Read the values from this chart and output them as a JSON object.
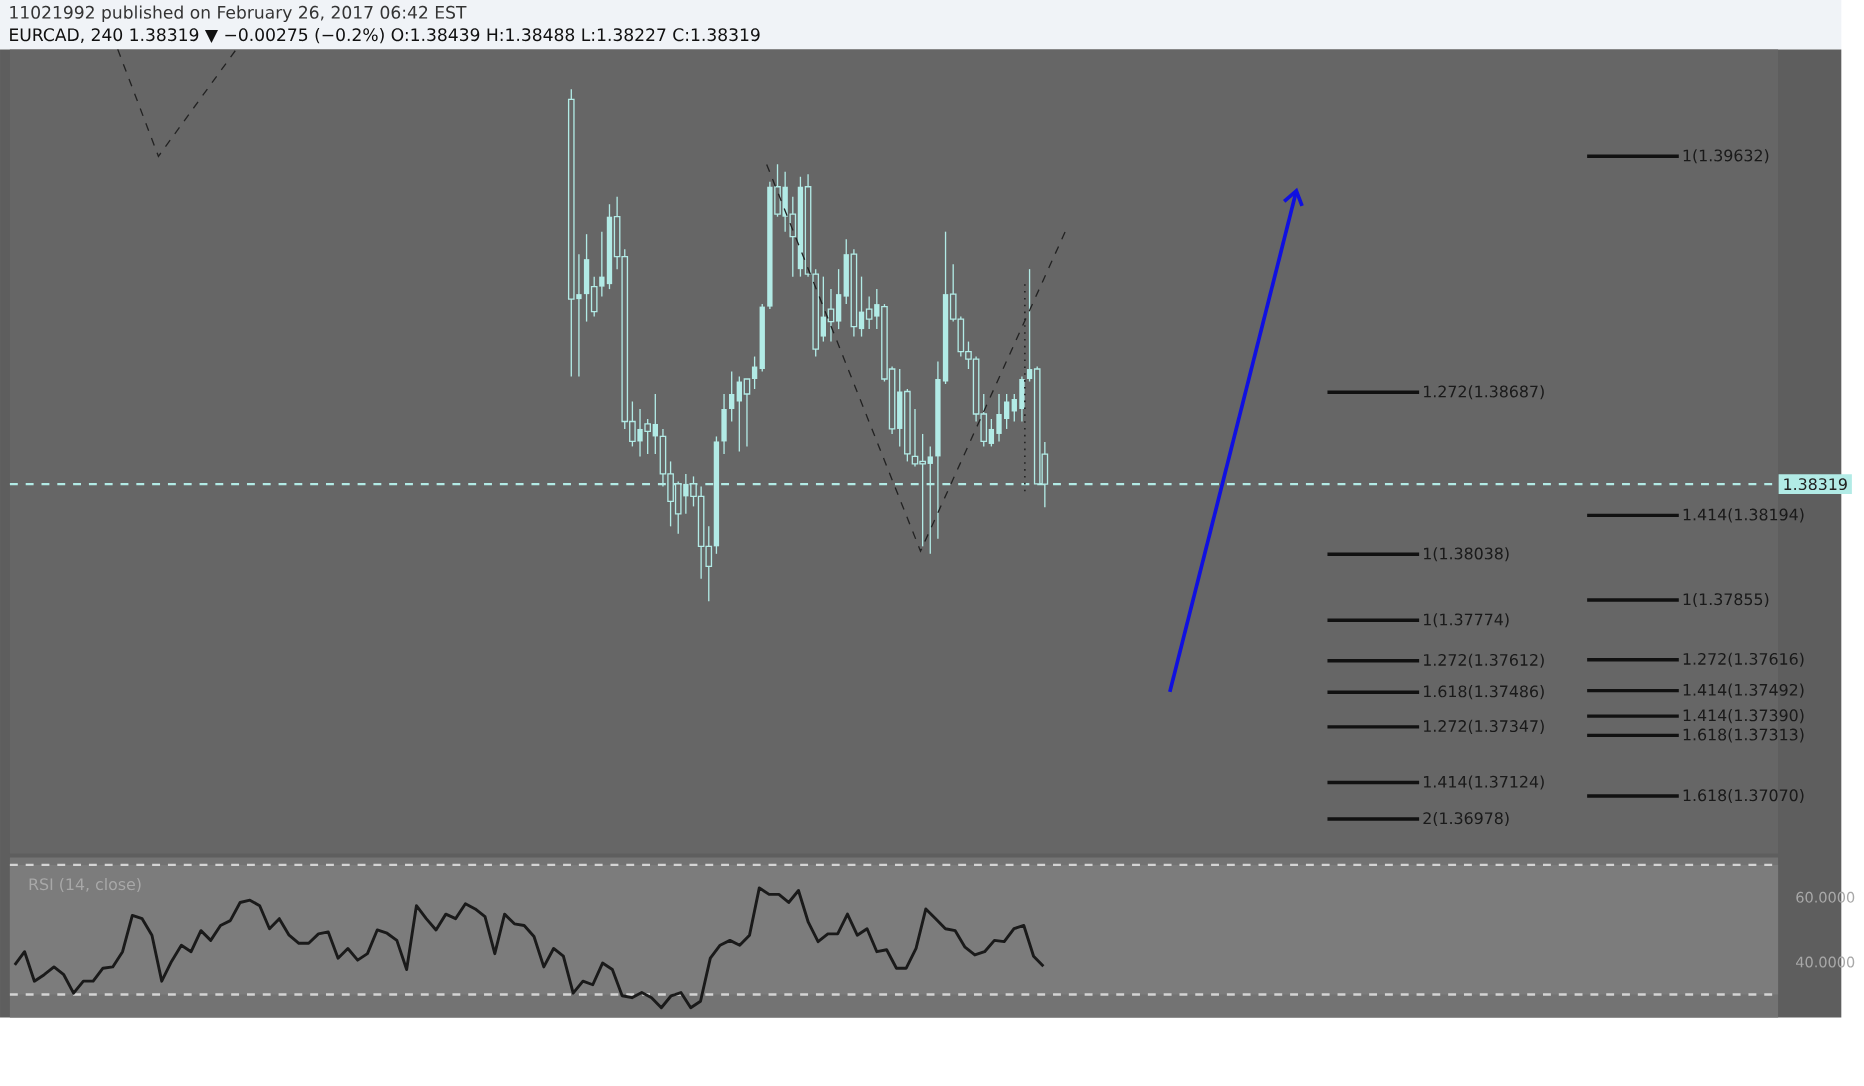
{
  "chart_data": [
    {
      "type": "candlestick",
      "subtitle": "11021992 published on February 26, 2017 06:42 EST",
      "title": "EURCAD, 240 1.38319 ▼ −0.00275 (−0.2%) O:1.38439 H:1.38488 L:1.38227 C:1.38319",
      "color": "#b2ebe6",
      "tick_labels": false,
      "ylim": [
        1.3684,
        1.4006
      ],
      "categories": [
        null,
        null,
        null,
        null,
        null,
        null,
        null,
        null,
        null,
        null,
        null,
        null,
        null,
        null,
        null,
        null,
        null,
        null,
        null,
        null,
        null,
        null,
        null,
        null,
        null,
        null,
        null,
        null,
        null,
        null,
        null,
        null,
        null,
        null,
        null,
        null,
        null,
        null,
        null,
        null,
        null,
        null,
        null,
        null,
        null,
        null,
        null,
        null,
        null,
        null,
        null,
        null,
        null,
        null,
        null,
        null,
        null,
        null,
        null,
        null,
        null,
        null,
        null,
        null,
        null,
        null,
        null,
        null,
        null,
        null,
        null,
        null,
        null,
        null,
        null,
        null,
        null,
        null,
        null,
        null,
        null,
        null,
        null,
        null,
        null,
        null,
        null,
        null,
        null,
        null,
        null,
        null,
        null,
        null,
        null,
        null,
        null,
        null,
        null,
        null,
        null,
        null,
        null,
        null,
        null,
        null,
        null,
        null,
        null,
        null,
        null,
        null,
        null,
        null,
        null,
        null,
        null,
        null,
        null,
        null,
        null,
        null,
        null,
        null,
        null,
        null,
        null,
        null,
        null,
        null,
        null,
        null,
        null,
        null,
        null,
        null
      ],
      "ohlc": [
        null,
        null,
        null,
        null,
        null,
        null,
        null,
        null,
        null,
        null,
        null,
        null,
        null,
        null,
        null,
        null,
        null,
        null,
        null,
        null,
        null,
        null,
        null,
        null,
        null,
        null,
        null,
        null,
        null,
        null,
        null,
        null,
        null,
        null,
        null,
        null,
        null,
        null,
        null,
        null,
        null,
        null,
        null,
        null,
        null,
        null,
        null,
        null,
        null,
        null,
        null,
        null,
        null,
        null,
        null,
        null,
        null,
        null,
        null,
        null,
        null,
        null,
        null,
        null,
        null,
        null,
        null,
        null,
        null,
        null,
        null,
        null,
        null,
        [
          1.3986,
          1.399,
          1.3875,
          1.3906
        ],
        [
          1.3906,
          1.3924,
          1.3875,
          1.3908
        ],
        [
          1.3908,
          1.3932,
          1.3897,
          1.3922
        ],
        [
          1.3911,
          1.3915,
          1.3899,
          1.3901
        ],
        [
          1.3911,
          1.3933,
          1.3907,
          1.3915
        ],
        [
          1.3912,
          1.3944,
          1.391,
          1.3939
        ],
        [
          1.3939,
          1.3947,
          1.3918,
          1.3923
        ],
        [
          1.3923,
          1.3926,
          1.3854,
          1.3857
        ],
        [
          1.3857,
          1.3865,
          1.3847,
          1.3849
        ],
        [
          1.3849,
          1.3862,
          1.3843,
          1.3854
        ],
        [
          1.3856,
          1.3858,
          1.3844,
          1.3853
        ],
        [
          1.3851,
          1.3868,
          1.3844,
          1.3856
        ],
        [
          1.3851,
          1.3854,
          1.3831,
          1.3836
        ],
        [
          1.3836,
          1.3841,
          1.3815,
          1.3825
        ],
        [
          1.3832,
          1.3833,
          1.3812,
          1.382
        ],
        [
          1.3827,
          1.3836,
          1.382,
          1.3832
        ],
        [
          1.3832,
          1.3835,
          1.3823,
          1.3827
        ],
        [
          1.3827,
          1.3831,
          1.3794,
          1.3807
        ],
        [
          1.3807,
          1.3815,
          1.3785,
          1.3799
        ],
        [
          1.3807,
          1.3851,
          1.3804,
          1.3849
        ],
        [
          1.3849,
          1.3868,
          1.3844,
          1.3862
        ],
        [
          1.3862,
          1.3877,
          1.3857,
          1.3868
        ],
        [
          1.3865,
          1.3875,
          1.3845,
          1.3873
        ],
        [
          1.3874,
          1.3874,
          1.3847,
          1.3868
        ],
        [
          1.3874,
          1.3883,
          1.387,
          1.3879
        ],
        [
          1.3878,
          1.3904,
          1.3877,
          1.3903
        ],
        [
          1.3903,
          1.3953,
          1.3902,
          1.3951
        ],
        [
          1.3951,
          1.396,
          1.3939,
          1.394
        ],
        [
          1.3939,
          1.3957,
          1.3933,
          1.3951
        ],
        [
          1.394,
          1.3947,
          1.3915,
          1.3931
        ],
        [
          1.3918,
          1.3955,
          1.3915,
          1.3951
        ],
        [
          1.3951,
          1.3956,
          1.3915,
          1.3916
        ],
        [
          1.3916,
          1.3918,
          1.3883,
          1.3886
        ],
        [
          1.3891,
          1.3915,
          1.3889,
          1.3899
        ],
        [
          1.3902,
          1.391,
          1.3889,
          1.3897
        ],
        [
          1.3897,
          1.3918,
          1.3894,
          1.3908
        ],
        [
          1.3907,
          1.393,
          1.3904,
          1.3924
        ],
        [
          1.3924,
          1.3926,
          1.3891,
          1.3895
        ],
        [
          1.3894,
          1.3915,
          1.3891,
          1.3901
        ],
        [
          1.3902,
          1.3907,
          1.3894,
          1.3898
        ],
        [
          1.3899,
          1.391,
          1.3894,
          1.3904
        ],
        [
          1.3903,
          1.3904,
          1.3873,
          1.3874
        ],
        [
          1.3878,
          1.3879,
          1.3852,
          1.3854
        ],
        [
          1.3854,
          1.3878,
          1.3847,
          1.3869
        ],
        [
          1.3869,
          1.387,
          1.3841,
          1.3844
        ],
        [
          1.3843,
          1.3862,
          1.3839,
          1.384
        ],
        [
          1.3841,
          1.3852,
          1.3807,
          1.384
        ],
        [
          1.384,
          1.3847,
          1.3804,
          1.3843
        ],
        [
          1.3843,
          1.3881,
          1.381,
          1.3874
        ],
        [
          1.3873,
          1.3933,
          1.3872,
          1.3908
        ],
        [
          1.3908,
          1.392,
          1.3897,
          1.3898
        ],
        [
          1.3898,
          1.3899,
          1.3883,
          1.3885
        ],
        [
          1.3885,
          1.3889,
          1.3878,
          1.3882
        ],
        [
          1.3882,
          1.3883,
          1.3857,
          1.386
        ],
        [
          1.386,
          1.3868,
          1.3847,
          1.3849
        ],
        [
          1.3848,
          1.3858,
          1.3847,
          1.3854
        ],
        [
          1.3852,
          1.3868,
          1.3849,
          1.386
        ],
        [
          1.3858,
          1.3868,
          1.3854,
          1.3865
        ],
        [
          1.3861,
          1.3868,
          1.3857,
          1.3866
        ],
        [
          1.3862,
          1.3875,
          1.3857,
          1.3874
        ],
        [
          1.3874,
          1.3918,
          1.3873,
          1.3878
        ],
        [
          1.3878,
          1.3879,
          1.3832,
          1.3832
        ],
        [
          1.38439,
          1.38488,
          1.38227,
          1.38319
        ]
      ],
      "ref_lines": [
        {
          "axis": "y",
          "value": 1.38319,
          "label": "1.38319",
          "color": "#b2ebe6",
          "line_style": "dashed"
        },
        {
          "axis": "y",
          "value": 1.39632,
          "label": "1(1.39632)"
        },
        {
          "axis": "y",
          "value": 1.38687,
          "label": "1.272(1.38687)"
        },
        {
          "axis": "y",
          "value": 1.38194,
          "label": "1.414(1.38194)"
        },
        {
          "axis": "y",
          "value": 1.37486,
          "label": "1.618(1.37486)"
        },
        {
          "axis": "y",
          "value": 1.38038,
          "label": "1(1.38038)"
        },
        {
          "axis": "y",
          "value": 1.37612,
          "label": "1.272(1.37612)"
        },
        {
          "axis": "y",
          "value": 1.3739,
          "label": "1.414(1.37390)"
        },
        {
          "axis": "y",
          "value": 1.3707,
          "label": "1.618(1.37070)"
        },
        {
          "axis": "y",
          "value": 1.37855,
          "label": "1(1.37855)"
        },
        {
          "axis": "y",
          "value": 1.37774,
          "label": "1(1.37774)"
        },
        {
          "axis": "y",
          "value": 1.37616,
          "label": "1.272(1.37616)"
        },
        {
          "axis": "y",
          "value": 1.37492,
          "label": "1.414(1.37492)"
        },
        {
          "axis": "y",
          "value": 1.37347,
          "label": "1.272(1.37347)"
        },
        {
          "axis": "y",
          "value": 1.37313,
          "label": "1.618(1.37313)"
        },
        {
          "axis": "y",
          "value": 1.37124,
          "label": "1.414(1.37124)"
        },
        {
          "axis": "y",
          "value": 1.36978,
          "label": "2(1.36978)"
        }
      ]
    },
    {
      "type": "line",
      "title": "RSI (14, close)",
      "color": "#1a1a1a",
      "tick_labels": "y",
      "ylim": [
        22.9,
        72.3
      ],
      "yticks": [
        {
          "value": 40,
          "label": "40.0000"
        },
        {
          "value": 60,
          "label": "60.0000"
        }
      ],
      "bands": [
        {
          "axis": "y",
          "from": 30,
          "to": 70,
          "color": "#7c7c7c"
        }
      ],
      "ref_lines": [
        {
          "axis": "y",
          "value": 70,
          "color": "#d4d4d4",
          "line_style": "dashed"
        },
        {
          "axis": "y",
          "value": 30,
          "color": "#d4d4d4",
          "line_style": "dashed"
        }
      ],
      "categories": [
        null,
        null,
        null,
        null,
        null,
        null,
        null,
        null,
        null,
        null,
        null,
        null,
        null,
        null,
        null,
        null,
        null,
        null,
        null,
        null,
        null,
        null,
        null,
        null,
        null,
        null,
        null,
        null,
        null,
        null,
        null,
        null,
        null,
        null,
        null,
        null,
        null,
        null,
        null,
        null,
        null,
        null,
        null,
        null,
        null,
        null,
        null,
        null,
        null,
        null,
        null,
        null,
        null,
        null,
        null,
        null,
        null,
        null,
        null,
        null,
        null,
        null,
        null,
        null,
        null,
        null,
        null,
        null,
        null,
        null,
        null,
        null,
        null,
        null,
        null,
        null,
        null,
        null,
        null,
        null,
        null,
        null,
        null,
        null,
        null,
        null,
        null,
        null,
        null,
        null,
        null,
        null,
        null,
        null,
        null,
        null,
        null,
        null,
        null,
        null,
        null,
        null,
        null,
        null,
        null,
        null
      ],
      "values": [
        39.1,
        43.2,
        34.1,
        36.1,
        38.5,
        36.1,
        30.4,
        34.1,
        34.1,
        38.1,
        38.5,
        43.2,
        54.4,
        53.4,
        48.3,
        34.1,
        40.2,
        45.2,
        43.2,
        49.7,
        46.7,
        51.3,
        52.8,
        58.4,
        59.1,
        57.4,
        50.3,
        53.4,
        48.3,
        45.8,
        45.8,
        48.7,
        49.3,
        41.2,
        44.2,
        40.6,
        42.6,
        49.9,
        48.9,
        46.7,
        37.7,
        57.4,
        53.4,
        49.9,
        54.8,
        53.4,
        58.0,
        56.4,
        54.0,
        42.6,
        54.8,
        51.8,
        51.3,
        47.9,
        38.5,
        44.2,
        41.8,
        30.4,
        34.1,
        33.0,
        39.7,
        37.7,
        29.6,
        29.0,
        30.6,
        29.0,
        25.9,
        29.6,
        30.6,
        25.9,
        27.9,
        41.2,
        45.2,
        46.7,
        45.2,
        48.3,
        62.9,
        60.9,
        60.9,
        58.4,
        62.1,
        52.3,
        46.3,
        48.7,
        48.7,
        54.8,
        48.3,
        50.3,
        43.2,
        43.8,
        38.1,
        38.1,
        44.2,
        56.4,
        53.4,
        50.3,
        49.7,
        44.6,
        42.2,
        43.2,
        46.7,
        46.3,
        50.3,
        51.3,
        41.8,
        38.7
      ]
    }
  ]
}
